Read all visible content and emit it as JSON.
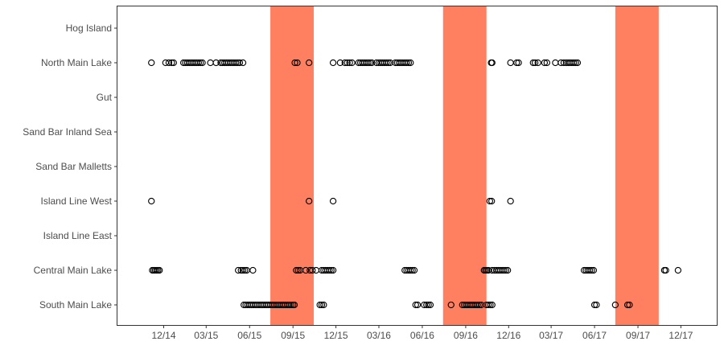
{
  "chart_data": {
    "type": "scatter",
    "title": "",
    "xlabel": "",
    "ylabel": "",
    "categories": [
      "South Main Lake",
      "Central Main Lake",
      "Island Line East",
      "Island Line West",
      "Sand Bar Malletts",
      "Sand Bar Inland Sea",
      "Gut",
      "North Main Lake",
      "Hog Island"
    ],
    "x_ticks": [
      {
        "date": "2014-12-01",
        "label": "12/14"
      },
      {
        "date": "2015-03-01",
        "label": "03/15"
      },
      {
        "date": "2015-06-01",
        "label": "06/15"
      },
      {
        "date": "2015-09-01",
        "label": "09/15"
      },
      {
        "date": "2015-12-01",
        "label": "12/15"
      },
      {
        "date": "2016-03-01",
        "label": "03/16"
      },
      {
        "date": "2016-06-01",
        "label": "06/16"
      },
      {
        "date": "2016-09-01",
        "label": "09/16"
      },
      {
        "date": "2016-12-01",
        "label": "12/16"
      },
      {
        "date": "2017-03-01",
        "label": "03/17"
      },
      {
        "date": "2017-06-01",
        "label": "06/17"
      },
      {
        "date": "2017-09-01",
        "label": "09/17"
      },
      {
        "date": "2017-12-01",
        "label": "12/17"
      }
    ],
    "xlim": [
      "2014-08-25",
      "2018-02-15"
    ],
    "shaded_periods": [
      {
        "start": "2015-07-15",
        "end": "2015-10-15"
      },
      {
        "start": "2016-07-15",
        "end": "2016-10-15"
      },
      {
        "start": "2017-07-15",
        "end": "2017-10-15"
      }
    ],
    "colors": {
      "shade": "#ff7f61",
      "point": "#000000",
      "panel_border": "#333333",
      "tick": "#4d4d4d"
    },
    "grid": false,
    "legend": "none",
    "points": [
      {
        "y": "North Main Lake",
        "x": [
          "2014-11-05",
          "2014-12-05",
          "2014-12-12",
          "2014-12-18",
          "2014-12-22",
          "2015-01-12",
          "2015-01-16",
          "2015-01-20",
          "2015-01-24",
          "2015-01-28",
          "2015-02-01",
          "2015-02-05",
          "2015-02-09",
          "2015-02-13",
          "2015-02-17",
          "2015-02-21",
          "2015-03-10",
          "2015-03-22",
          "2015-04-01",
          "2015-04-05",
          "2015-04-09",
          "2015-04-13",
          "2015-04-17",
          "2015-04-21",
          "2015-04-25",
          "2015-04-29",
          "2015-05-03",
          "2015-05-07",
          "2015-05-11",
          "2015-05-18",
          "2015-09-05",
          "2015-09-10",
          "2015-10-05",
          "2015-11-25",
          "2015-12-10",
          "2015-12-20",
          "2015-12-25",
          "2015-12-30",
          "2016-01-04",
          "2016-01-18",
          "2016-01-22",
          "2016-01-26",
          "2016-01-30",
          "2016-02-03",
          "2016-02-07",
          "2016-02-11",
          "2016-02-15",
          "2016-02-25",
          "2016-03-01",
          "2016-03-05",
          "2016-03-09",
          "2016-03-13",
          "2016-03-17",
          "2016-03-21",
          "2016-03-25",
          "2016-04-05",
          "2016-04-09",
          "2016-04-13",
          "2016-04-17",
          "2016-04-21",
          "2016-04-25",
          "2016-04-29",
          "2016-05-03",
          "2016-05-07",
          "2016-10-25",
          "2016-10-27",
          "2016-12-05",
          "2016-12-18",
          "2016-12-22",
          "2017-01-22",
          "2017-01-26",
          "2017-02-01",
          "2017-02-15",
          "2017-02-20",
          "2017-03-10",
          "2017-03-22",
          "2017-03-28",
          "2017-04-02",
          "2017-04-06",
          "2017-04-10",
          "2017-04-14",
          "2017-04-18",
          "2017-04-22",
          "2017-04-26"
        ]
      },
      {
        "y": "Island Line West",
        "x": [
          "2014-11-05",
          "2015-10-05",
          "2015-11-25",
          "2016-10-22",
          "2016-10-26",
          "2016-12-05"
        ]
      },
      {
        "y": "Central Main Lake",
        "x": [
          "2014-11-07",
          "2014-11-10",
          "2014-11-13",
          "2014-11-16",
          "2014-11-19",
          "2014-11-22",
          "2015-05-08",
          "2015-05-14",
          "2015-05-18",
          "2015-05-22",
          "2015-05-26",
          "2015-06-08",
          "2015-09-08",
          "2015-09-12",
          "2015-09-16",
          "2015-09-28",
          "2015-10-07",
          "2015-10-12",
          "2015-10-20",
          "2015-11-01",
          "2015-11-05",
          "2015-11-09",
          "2015-11-13",
          "2015-11-17",
          "2015-11-21",
          "2015-11-25",
          "2016-04-25",
          "2016-04-29",
          "2016-05-03",
          "2016-05-07",
          "2016-05-11",
          "2016-05-15",
          "2016-10-10",
          "2016-10-13",
          "2016-10-16",
          "2016-10-19",
          "2016-10-27",
          "2016-11-01",
          "2016-11-05",
          "2016-11-09",
          "2016-11-13",
          "2016-11-17",
          "2016-11-21",
          "2016-11-25",
          "2016-11-29",
          "2017-05-10",
          "2017-05-14",
          "2017-05-18",
          "2017-05-22",
          "2017-05-26",
          "2017-05-30",
          "2017-10-27",
          "2017-10-30",
          "2017-11-25"
        ]
      },
      {
        "y": "South Main Lake",
        "x": [
          "2015-05-20",
          "2015-05-24",
          "2015-05-28",
          "2015-06-01",
          "2015-06-05",
          "2015-06-09",
          "2015-06-13",
          "2015-06-17",
          "2015-06-21",
          "2015-06-25",
          "2015-06-29",
          "2015-07-03",
          "2015-07-07",
          "2015-07-11",
          "2015-07-15",
          "2015-07-19",
          "2015-07-23",
          "2015-07-27",
          "2015-07-31",
          "2015-08-04",
          "2015-08-08",
          "2015-08-12",
          "2015-08-16",
          "2015-08-20",
          "2015-08-24",
          "2015-08-28",
          "2015-09-01",
          "2015-09-04",
          "2015-10-28",
          "2015-11-01",
          "2015-11-05",
          "2016-05-18",
          "2016-05-22",
          "2016-06-05",
          "2016-06-10",
          "2016-06-14",
          "2016-06-18",
          "2016-08-01",
          "2016-08-25",
          "2016-08-29",
          "2016-09-02",
          "2016-09-06",
          "2016-09-10",
          "2016-09-14",
          "2016-09-18",
          "2016-09-22",
          "2016-09-26",
          "2016-09-30",
          "2016-10-04",
          "2016-10-15",
          "2016-10-19",
          "2016-10-23",
          "2016-10-27",
          "2017-06-01",
          "2017-06-05",
          "2017-07-15",
          "2017-08-10",
          "2017-08-14"
        ]
      }
    ]
  }
}
